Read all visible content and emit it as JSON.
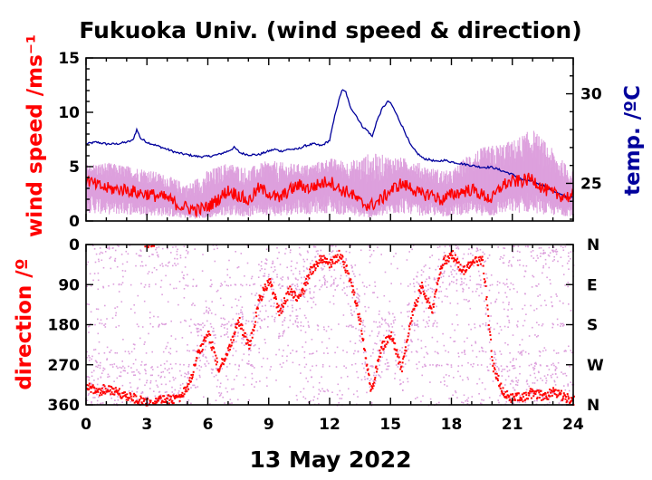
{
  "chart_data": [
    {
      "type": "line",
      "panel": "top",
      "title": "Fukuoka Univ. (wind speed & direction)",
      "ylabel": "wind speed /ms⁻¹",
      "y2label": "temp. /ºC",
      "xlim": [
        0,
        24
      ],
      "ylim": [
        0,
        15
      ],
      "y2lim": [
        22.9,
        32
      ],
      "yticks": [
        0,
        5,
        10,
        15
      ],
      "y2ticks": [
        25,
        30
      ],
      "colors": {
        "speed": "#ff0000",
        "gust_range": "#dda0dd",
        "temp": "#00009c"
      },
      "series": [
        {
          "name": "temp",
          "axis": "right",
          "x": [
            0,
            0.5,
            1,
            1.5,
            2,
            2.3,
            2.5,
            2.7,
            3,
            3.5,
            4,
            4.5,
            5,
            5.5,
            6,
            6.5,
            7,
            7.3,
            7.6,
            8,
            8.5,
            9,
            9.3,
            9.6,
            10,
            10.4,
            10.8,
            11.2,
            11.6,
            12,
            12.3,
            12.6,
            12.8,
            13,
            13.3,
            13.6,
            13.9,
            14.1,
            14.3,
            14.6,
            14.9,
            15.1,
            15.4,
            15.7,
            16,
            16.3,
            16.6,
            17,
            17.3,
            17.6,
            18,
            18.5,
            19,
            19.5,
            20,
            20.5,
            21,
            21.5,
            22,
            22.5,
            23,
            23.5,
            24
          ],
          "values": [
            27.2,
            27.3,
            27.2,
            27.2,
            27.3,
            27.4,
            28.0,
            27.5,
            27.3,
            27.1,
            26.9,
            26.7,
            26.6,
            26.5,
            26.5,
            26.6,
            26.8,
            27.0,
            26.7,
            26.6,
            26.6,
            26.8,
            26.9,
            26.8,
            26.9,
            26.9,
            27.1,
            27.2,
            27.1,
            27.4,
            29.0,
            30.2,
            30.1,
            29.3,
            28.8,
            28.2,
            27.9,
            27.6,
            28.4,
            29.2,
            29.6,
            29.3,
            28.6,
            27.9,
            27.1,
            26.7,
            26.4,
            26.3,
            26.2,
            26.3,
            26.2,
            26.1,
            26.0,
            25.9,
            25.9,
            25.7,
            25.5,
            25.2,
            25.1,
            24.9,
            24.6,
            24.3,
            24.2
          ]
        },
        {
          "name": "wind speed",
          "axis": "left",
          "x": [
            0,
            0.5,
            1,
            1.5,
            2,
            2.5,
            3,
            3.5,
            4,
            4.5,
            5,
            5.5,
            6,
            6.5,
            7,
            7.5,
            8,
            8.5,
            9,
            9.5,
            10,
            10.5,
            11,
            11.5,
            12,
            12.5,
            13,
            13.5,
            14,
            14.5,
            15,
            15.5,
            16,
            16.5,
            17,
            17.5,
            18,
            18.5,
            19,
            19.5,
            20,
            20.5,
            21,
            21.5,
            22,
            22.5,
            23,
            23.5,
            24
          ],
          "values": [
            3.8,
            3.3,
            3.0,
            2.9,
            2.9,
            2.6,
            2.5,
            2.3,
            2.1,
            1.5,
            1.2,
            1.0,
            1.3,
            2.0,
            2.8,
            2.4,
            1.8,
            3.0,
            2.6,
            2.0,
            2.8,
            3.3,
            3.0,
            3.4,
            3.7,
            2.9,
            2.6,
            1.7,
            1.4,
            1.9,
            2.8,
            3.4,
            3.1,
            2.4,
            2.5,
            1.9,
            2.4,
            2.7,
            2.9,
            2.4,
            2.0,
            3.3,
            3.6,
            3.7,
            3.9,
            3.0,
            2.5,
            2.3,
            2.2
          ]
        },
        {
          "name": "gust max",
          "axis": "left",
          "x": [
            0,
            1,
            2,
            3,
            4,
            5,
            6,
            7,
            8,
            9,
            10,
            11,
            12,
            13,
            14,
            15,
            16,
            17,
            18,
            19,
            20,
            21,
            22,
            23,
            24
          ],
          "values": [
            5.2,
            5.4,
            5.1,
            4.8,
            4.2,
            3.4,
            4.7,
            5.4,
            4.9,
            5.6,
            5.3,
            5.2,
            5.8,
            5.5,
            6.3,
            6.0,
            5.7,
            4.9,
            4.6,
            6.5,
            7.0,
            7.4,
            8.5,
            6.6,
            4.5
          ]
        }
      ]
    },
    {
      "type": "scatter",
      "panel": "bottom",
      "ylabel": "direction /º",
      "xlabel": "13 May 2022",
      "xlim": [
        0,
        24
      ],
      "ylim": [
        0,
        360
      ],
      "yinverted": true,
      "xticks": [
        0,
        3,
        6,
        9,
        12,
        15,
        18,
        21,
        24
      ],
      "yticks": [
        0,
        90,
        180,
        270,
        360
      ],
      "y2ticks": [
        "N",
        "E",
        "S",
        "W",
        "N"
      ],
      "series": [
        {
          "name": "direction",
          "x": [
            0,
            0.5,
            1,
            1.5,
            2,
            2.5,
            3,
            3.5,
            4,
            4.5,
            5,
            5.5,
            6,
            6.5,
            7,
            7.5,
            8,
            8.5,
            9,
            9.5,
            10,
            10.5,
            11,
            11.5,
            12,
            12.5,
            13,
            13.5,
            14,
            14.5,
            15,
            15.5,
            16,
            16.5,
            17,
            17.5,
            18,
            18.5,
            19,
            19.5,
            20,
            20.5,
            21,
            21.5,
            22,
            22.5,
            23,
            23.5,
            24
          ],
          "values": [
            315,
            330,
            320,
            330,
            340,
            345,
            355,
            350,
            345,
            345,
            320,
            240,
            200,
            280,
            230,
            170,
            230,
            120,
            80,
            150,
            100,
            120,
            60,
            30,
            40,
            20,
            80,
            180,
            330,
            230,
            200,
            280,
            160,
            90,
            150,
            40,
            20,
            60,
            40,
            30,
            270,
            330,
            345,
            340,
            330,
            340,
            330,
            340,
            350
          ]
        }
      ]
    }
  ]
}
